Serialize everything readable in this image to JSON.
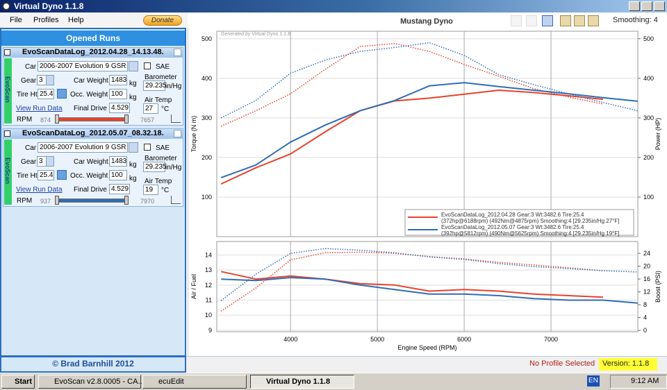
{
  "app": {
    "title": "Virtual Dyno 1.1.8",
    "menu": [
      "File",
      "Profiles",
      "Help"
    ],
    "donate": "Donate",
    "panel_title": "Opened Runs",
    "footer": "© Brad Barnhill 2012",
    "side_tab": "EvoScan",
    "labels": {
      "car": "Car",
      "gear": "Gear",
      "car_weight": "Car Weight",
      "tire_ht": "Tire Ht",
      "occ_weight": "Occ. Weight",
      "final_drive": "Final Drive",
      "barometer": "Barometer",
      "air_temp": "Air Temp",
      "rpm": "RPM",
      "view": "View Run Data",
      "sae": "SAE",
      "kg": "kg",
      "inhg": "in/Hg",
      "degc": "°C"
    },
    "runs": [
      {
        "file": "EvoScanDataLog_2012.04.28_14.13.48.",
        "car": "2006-2007 Evolution 9 GSR",
        "gear": 3,
        "car_weight": 1483,
        "tire_ht": 25.4,
        "occ_weight": 100,
        "final_drive": 4.529,
        "barometer": 29.235,
        "air_temp": 27,
        "rpm_min": 874,
        "rpm_max": 7657,
        "color": "#e8412c"
      },
      {
        "file": "EvoScanDataLog_2012.05.07_08.32.18.",
        "car": "2006-2007 Evolution 9 GSR",
        "gear": 3,
        "car_weight": 1483,
        "tire_ht": 25.4,
        "occ_weight": 100,
        "final_drive": 4.529,
        "barometer": 29.235,
        "air_temp": 19,
        "rpm_min": 937,
        "rpm_max": 7970,
        "color": "#2f6db5"
      }
    ],
    "smoothing": "Smoothing: 4",
    "profile": "No Profile Selected",
    "version": "Version: 1.1.8"
  },
  "taskbar": {
    "start": "Start",
    "tasks": [
      "EvoScan v2.8.0005 - CA...",
      "ecuEdit",
      "Virtual Dyno 1.1.8"
    ],
    "lang": "EN",
    "time": "9:12 AM"
  },
  "chart_data": [
    {
      "type": "line",
      "title": "Mustang Dyno",
      "watermark": "Generated by Virtual Dyno 1.1.8",
      "ylabel": "Torque (N m)",
      "y2label": "Power (HP)",
      "x": [
        3200,
        3600,
        4000,
        4400,
        4800,
        5200,
        5600,
        6000,
        6400,
        6800,
        7200,
        7600,
        8000
      ],
      "xlim": [
        3150,
        8000
      ],
      "xticks": [
        4000,
        5000,
        6000,
        7000
      ],
      "show_xtick_labels": false,
      "ylim": [
        0,
        519
      ],
      "yticks": [
        100,
        200,
        300,
        400,
        500
      ],
      "y2lim": [
        0,
        519
      ],
      "y2ticks": [
        100,
        200,
        300,
        400,
        500
      ],
      "grid": true,
      "series": [
        {
          "color": "#e8412c",
          "style": "dotted",
          "values": [
            279,
            318,
            361,
            423,
            480,
            488,
            468,
            435,
            405,
            374,
            353,
            335,
            null
          ]
        },
        {
          "color": "#e8412c",
          "style": "solid",
          "axis": "y2",
          "values": [
            133,
            174,
            209,
            265,
            318,
            343,
            350,
            360,
            370,
            364,
            356,
            347,
            null
          ]
        },
        {
          "color": "#2f6db5",
          "style": "dotted",
          "values": [
            300,
            344,
            413,
            446,
            468,
            478,
            490,
            458,
            409,
            384,
            361,
            339,
            318
          ]
        },
        {
          "color": "#2f6db5",
          "style": "solid",
          "axis": "y2",
          "values": [
            149,
            181,
            239,
            282,
            318,
            344,
            381,
            389,
            379,
            370,
            361,
            351,
            342
          ]
        }
      ],
      "legend": [
        {
          "color": "#e8412c",
          "text": [
            "EvoScanDataLog_2012.04.28 Gear:3 Wt:3482.6 Tire:25.4",
            "(372hp@6188rpm) (492Nm@4875rpm) Smoothing:4 [29.235in/Hg 27°F]"
          ]
        },
        {
          "color": "#2f6db5",
          "text": [
            "EvoScanDataLog_2012.05.07 Gear:3 Wt:3482.6 Tire:25.4",
            "(392hp@5812rpm) (490Nm@5625rpm) Smoothing:4 [29.235in/Hg 19°F]"
          ]
        }
      ]
    },
    {
      "type": "line",
      "xlabel": "Engine Speed (RPM)",
      "ylabel": "Air / Fuel",
      "y2label": "Boost (PSI)",
      "x": [
        3200,
        3600,
        4000,
        4400,
        4800,
        5200,
        5600,
        6000,
        6400,
        6800,
        7200,
        7600,
        8000
      ],
      "xlim": [
        3150,
        8000
      ],
      "xticks": [
        4000,
        5000,
        6000,
        7000
      ],
      "show_xtick_labels": true,
      "ylim": [
        8.9,
        14.9
      ],
      "yticks": [
        9,
        10,
        11,
        12,
        13,
        14
      ],
      "y2lim": [
        -0.4,
        27.7
      ],
      "y2ticks": [
        0,
        4,
        8,
        12,
        16,
        20,
        24
      ],
      "grid": true,
      "series": [
        {
          "color": "#e8412c",
          "style": "solid",
          "values": [
            12.9,
            12.4,
            12.6,
            12.4,
            12.1,
            12.0,
            11.6,
            11.7,
            11.6,
            11.4,
            11.3,
            11.2,
            null
          ]
        },
        {
          "color": "#2f6db5",
          "style": "solid",
          "values": [
            12.4,
            12.3,
            12.5,
            12.4,
            12.0,
            11.7,
            11.4,
            11.4,
            11.3,
            11.1,
            11.0,
            11.0,
            10.8
          ]
        },
        {
          "color": "#e8412c",
          "style": "dotted",
          "axis": "y2",
          "values": [
            6,
            13.2,
            22,
            24.2,
            24.4,
            24,
            23,
            22.3,
            21.2,
            20.4,
            19.5,
            18.6,
            null
          ]
        },
        {
          "color": "#2f6db5",
          "style": "dotted",
          "axis": "y2",
          "values": [
            9.3,
            17.5,
            24,
            25.5,
            25,
            24.2,
            22.9,
            22.1,
            20.8,
            19.9,
            19.3,
            18.6,
            18.2
          ]
        }
      ]
    }
  ]
}
